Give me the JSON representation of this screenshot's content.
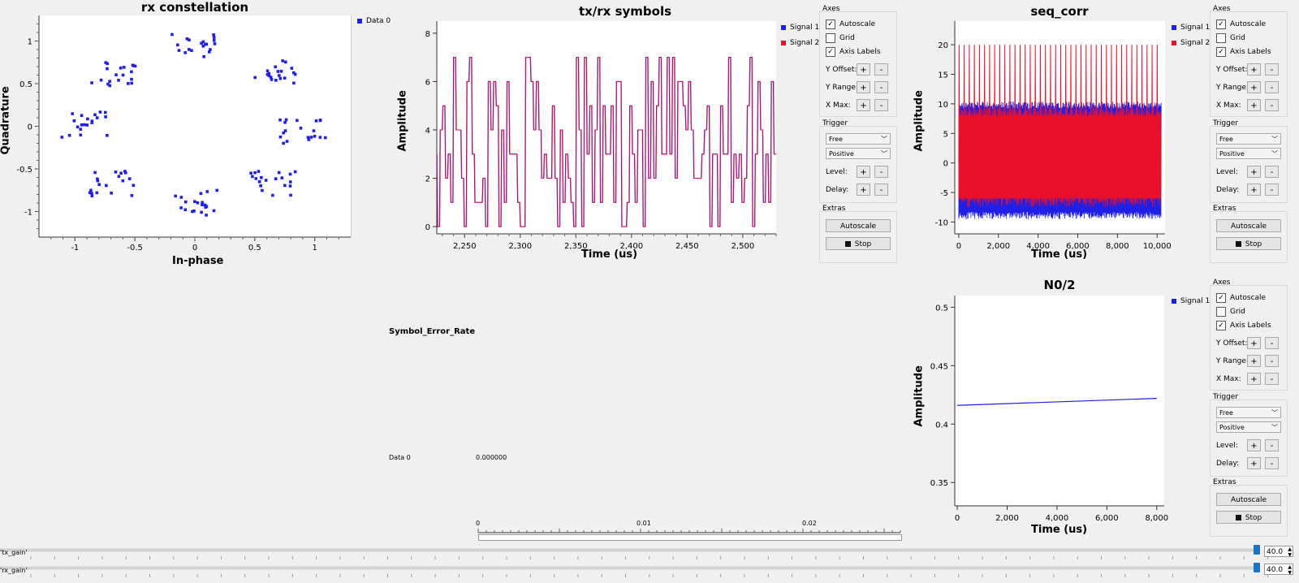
{
  "colors": {
    "blue": "#1f1fe6",
    "red": "#e8102c",
    "white": "#ffffff",
    "slider": "#1a73c7"
  },
  "constellation": {
    "title": "rx constellation",
    "xlabel": "In-phase",
    "ylabel": "Quadrature",
    "legend": "Data 0",
    "xticks": [
      "-1",
      "-0.5",
      "0",
      "0.5",
      "1"
    ],
    "yticks": [
      "1",
      "0.5",
      "0",
      "-0.5",
      "-1"
    ],
    "chart_data": {
      "type": "scatter",
      "xlim": [
        -1.3,
        1.3
      ],
      "ylim": [
        -1.3,
        1.3
      ],
      "clusters": [
        {
          "x": 0,
          "y": 0.95
        },
        {
          "x": 0.67,
          "y": 0.64
        },
        {
          "x": 0.9,
          "y": -0.05
        },
        {
          "x": 0.65,
          "y": -0.67
        },
        {
          "x": 0,
          "y": -0.9
        },
        {
          "x": -0.7,
          "y": -0.67
        },
        {
          "x": -0.92,
          "y": 0.02
        },
        {
          "x": -0.67,
          "y": 0.62
        }
      ]
    }
  },
  "txrx": {
    "title": "tx/rx symbols",
    "xlabel": "Time (us)",
    "ylabel": "Amplitude",
    "legend": [
      "Signal 1",
      "Signal 2"
    ],
    "xticks": [
      "2,250",
      "2,300",
      "2,350",
      "2,400",
      "2,450",
      "2,500"
    ],
    "yticks": [
      "8",
      "6",
      "4",
      "2",
      "0"
    ],
    "chart_data": {
      "type": "line",
      "xlim": [
        2225,
        2530
      ],
      "ylim": [
        -0.3,
        8.5
      ],
      "values_range": [
        0,
        7
      ]
    }
  },
  "seqcorr": {
    "title": "seq_corr",
    "xlabel": "Time (us)",
    "ylabel": "Amplitude",
    "legend": [
      "Signal 1",
      "Signal 2"
    ],
    "xticks": [
      "0",
      "2,000",
      "4,000",
      "6,000",
      "8,000",
      "10,000"
    ],
    "yticks": [
      "20",
      "15",
      "10",
      "5",
      "0",
      "-5",
      "-10"
    ],
    "chart_data": {
      "type": "line",
      "xlim": [
        -200,
        10400
      ],
      "ylim": [
        -12,
        24
      ],
      "peak": 20,
      "band": [
        -9,
        10
      ]
    }
  },
  "n0": {
    "title": "N0/2",
    "xlabel": "Time (us)",
    "ylabel": "Amplitude",
    "legend": [
      "Signal 1"
    ],
    "xticks": [
      "0",
      "2,000",
      "4,000",
      "6,000",
      "8,000"
    ],
    "yticks": [
      "0.5",
      "0.45",
      "0.4",
      "0.35"
    ],
    "chart_data": {
      "type": "line",
      "xlim": [
        -100,
        8300
      ],
      "ylim": [
        0.33,
        0.51
      ],
      "x": [
        0,
        8000
      ],
      "y": [
        0.416,
        0.422
      ]
    }
  },
  "ser": {
    "title": "Symbol_Error_Rate",
    "row_label": "Data 0",
    "row_value": "0.000000",
    "scale": [
      "0",
      "0.01",
      "0.02"
    ],
    "bar_fraction": 0
  },
  "controls": {
    "axes": "Axes",
    "autoscale": "Autoscale",
    "grid": "Grid",
    "axis_labels": "Axis Labels",
    "y_offset": "Y Offset:",
    "y_range": "Y Range:",
    "x_max": "X Max:",
    "trigger": "Trigger",
    "free": "Free",
    "positive": "Positive",
    "level": "Level:",
    "delay": "Delay:",
    "extras": "Extras",
    "autoscale_btn": "Autoscale",
    "stop": "Stop",
    "plus": "+",
    "minus": "-"
  },
  "sliders": [
    {
      "label": "'tx_gain'",
      "value": "40.0"
    },
    {
      "label": "'rx_gain'",
      "value": "40.0"
    }
  ]
}
